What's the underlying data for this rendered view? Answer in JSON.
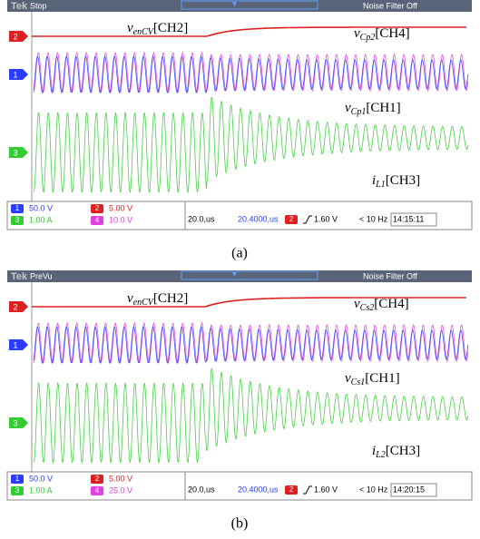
{
  "panels": [
    {
      "logo": "Tek",
      "status": "Stop",
      "filter": "Noise Filter Off",
      "markers": [
        "2",
        "1",
        "3"
      ],
      "labels": [
        {
          "symbol": "v",
          "sub": "enCV",
          "channel": "[CH2]"
        },
        {
          "symbol": "v",
          "sub": "Cp2",
          "channel": "[CH4]"
        },
        {
          "symbol": "v",
          "sub": "Cp1",
          "channel": "[CH1]"
        },
        {
          "symbol": "i",
          "sub": "L1",
          "channel": "[CH3]"
        }
      ],
      "scales": [
        {
          "ch": "1",
          "scale": "50.0 V"
        },
        {
          "ch": "2",
          "scale": "5.00 V"
        },
        {
          "ch": "3",
          "scale": "1.00 A"
        },
        {
          "ch": "4",
          "scale": "10.0 V"
        }
      ],
      "timebase": "20.0,us",
      "position": "20.4000,us",
      "trigger_ch": "2",
      "trigger": "1.60 V",
      "freq": "< 10 Hz",
      "time": "14:15:11",
      "caption": "(a)"
    },
    {
      "logo": "Tek",
      "status": "PreVu",
      "filter": "Noise Filter Off",
      "markers": [
        "2",
        "1",
        "3"
      ],
      "labels": [
        {
          "symbol": "v",
          "sub": "enCV",
          "channel": "[CH2]"
        },
        {
          "symbol": "v",
          "sub": "Cs2",
          "channel": "[CH4]"
        },
        {
          "symbol": "v",
          "sub": "Cs1",
          "channel": "[CH1]"
        },
        {
          "symbol": "i",
          "sub": "L2",
          "channel": "[CH3]"
        }
      ],
      "scales": [
        {
          "ch": "1",
          "scale": "50.0 V"
        },
        {
          "ch": "2",
          "scale": "5.00 V"
        },
        {
          "ch": "3",
          "scale": "1.00 A"
        },
        {
          "ch": "4",
          "scale": "25.0 V"
        }
      ],
      "timebase": "20.0,us",
      "position": "20.4000,us",
      "trigger_ch": "2",
      "trigger": "1.60 V",
      "freq": "< 10 Hz",
      "time": "14:20:15",
      "caption": "(b)"
    }
  ]
}
